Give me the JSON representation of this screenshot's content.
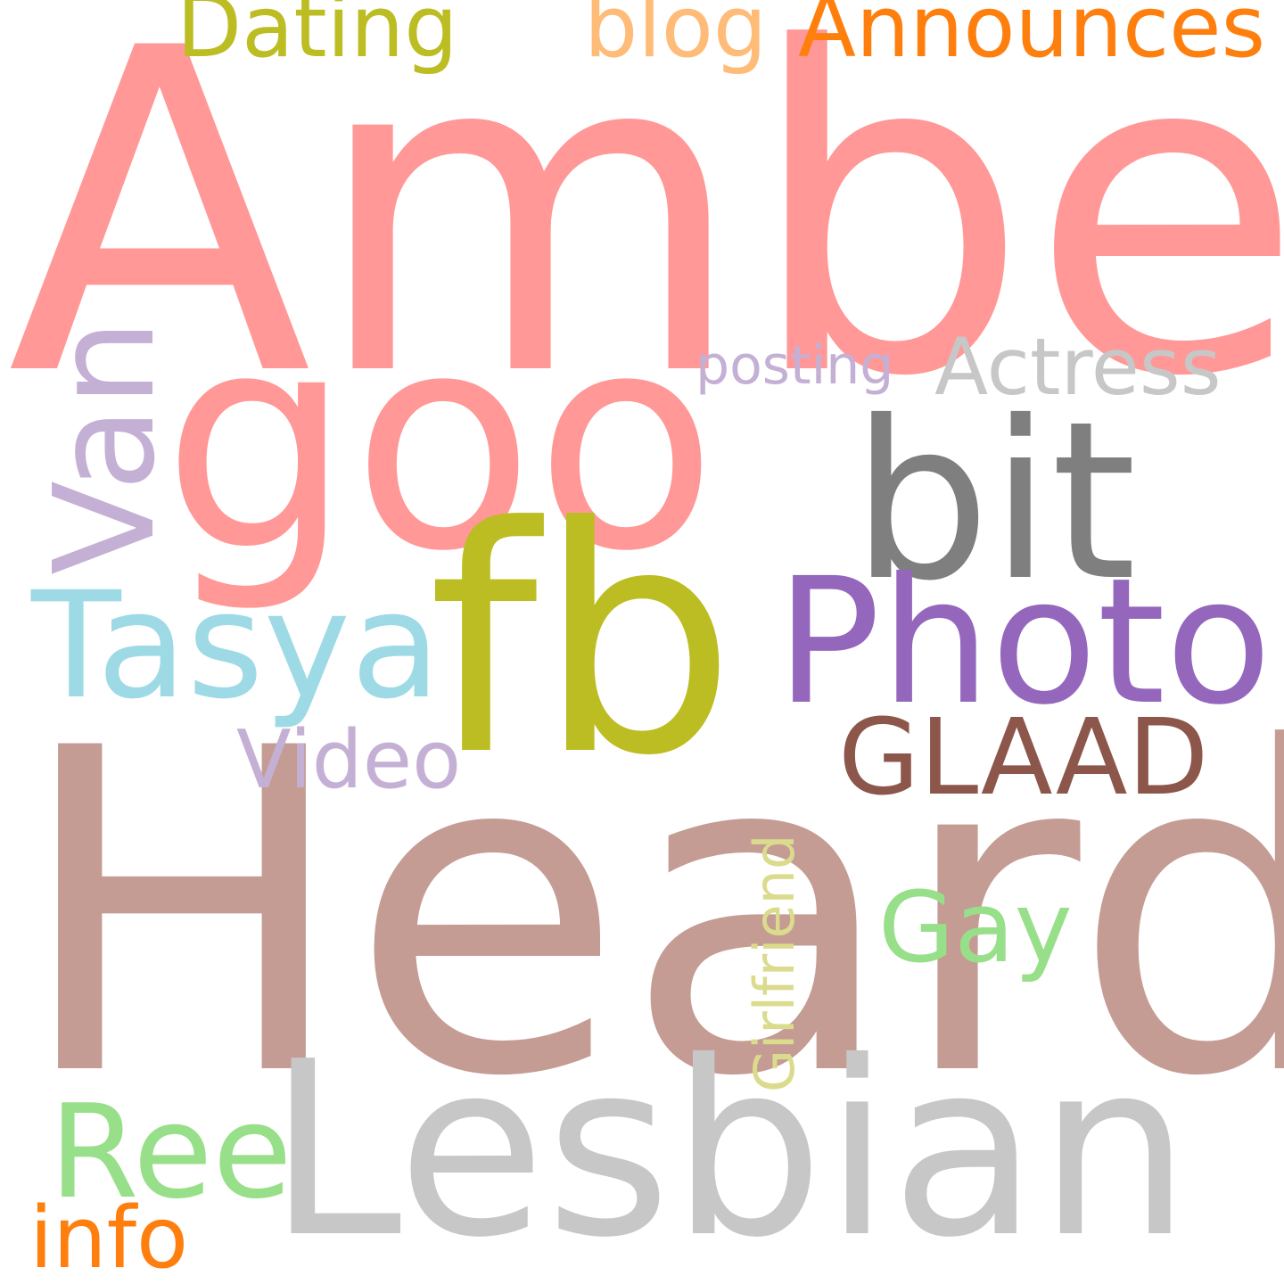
{
  "wordcloud": {
    "background": "#ffffff",
    "words": {
      "amber": {
        "text": "Amber",
        "color": "#ff9896"
      },
      "heard": {
        "text": "Heard",
        "color": "#c49c94"
      },
      "lesbian": {
        "text": "Lesbian",
        "color": "#c7c7c7"
      },
      "goo": {
        "text": "goo",
        "color": "#ff9896"
      },
      "fb": {
        "text": "fb",
        "color": "#bcbd22"
      },
      "bit": {
        "text": "bit",
        "color": "#7f7f7f"
      },
      "photo": {
        "text": "Photo",
        "color": "#9467bd"
      },
      "tasya": {
        "text": "Tasya",
        "color": "#9edae5"
      },
      "glaad": {
        "text": "GLAAD",
        "color": "#8c564b"
      },
      "actress": {
        "text": "Actress",
        "color": "#c7c7c7"
      },
      "posting": {
        "text": "posting",
        "color": "#c5b0d5"
      },
      "video": {
        "text": "Video",
        "color": "#c5b0d5"
      },
      "gay": {
        "text": "Gay",
        "color": "#98df8a"
      },
      "ree": {
        "text": "Ree",
        "color": "#98df8a"
      },
      "info": {
        "text": "info",
        "color": "#ff7f0e"
      },
      "dating": {
        "text": "Dating",
        "color": "#bcbd22"
      },
      "blog": {
        "text": "blog",
        "color": "#ffbb78"
      },
      "announces": {
        "text": "Announces",
        "color": "#ff7f0e"
      },
      "van": {
        "text": "Van",
        "color": "#c5b0d5"
      },
      "girlfriend": {
        "text": "Girlfriend",
        "color": "#dbdb8d"
      }
    }
  }
}
